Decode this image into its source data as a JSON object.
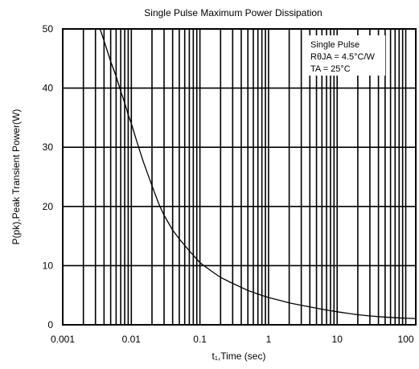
{
  "chart_data": {
    "type": "line",
    "title": "Single Pulse Maximum Power Dissipation",
    "xlabel": "t₁,Time (sec)",
    "ylabel": "P(pk),Peak Transient Power(W)",
    "x_scale": "log",
    "xlim": [
      0.001,
      140
    ],
    "ylim": [
      0,
      50
    ],
    "x_ticks": [
      0.001,
      0.01,
      0.1,
      1,
      10,
      100
    ],
    "x_tick_labels": [
      "0.001",
      "0.01",
      "0.1",
      "1",
      "10",
      "100"
    ],
    "y_ticks": [
      0,
      10,
      20,
      30,
      40,
      50
    ],
    "y_tick_labels": [
      "0",
      "10",
      "20",
      "30",
      "40",
      "50"
    ],
    "grid": true,
    "annotations": [
      "Single Pulse",
      "RθJA = 4.5°C/W",
      "TA = 25°C"
    ],
    "series": [
      {
        "x": [
          0.0035,
          0.004,
          0.005,
          0.006,
          0.007,
          0.008,
          0.009,
          0.01,
          0.012,
          0.015,
          0.02,
          0.025,
          0.03,
          0.04,
          0.05,
          0.07,
          0.1,
          0.15,
          0.2,
          0.3,
          0.5,
          0.7,
          1,
          1.5,
          2,
          3,
          5,
          7,
          10,
          15,
          20,
          30,
          50,
          70,
          100,
          140
        ],
        "values": [
          50,
          48,
          44.5,
          42,
          39.5,
          37.5,
          35.5,
          34,
          31,
          27.5,
          23.5,
          20.5,
          18.5,
          16,
          14.5,
          12.5,
          10.5,
          9,
          8,
          7,
          5.8,
          5.2,
          4.6,
          4.1,
          3.7,
          3.3,
          2.8,
          2.5,
          2.2,
          1.9,
          1.7,
          1.5,
          1.3,
          1.2,
          1.1,
          1.05
        ]
      }
    ]
  }
}
